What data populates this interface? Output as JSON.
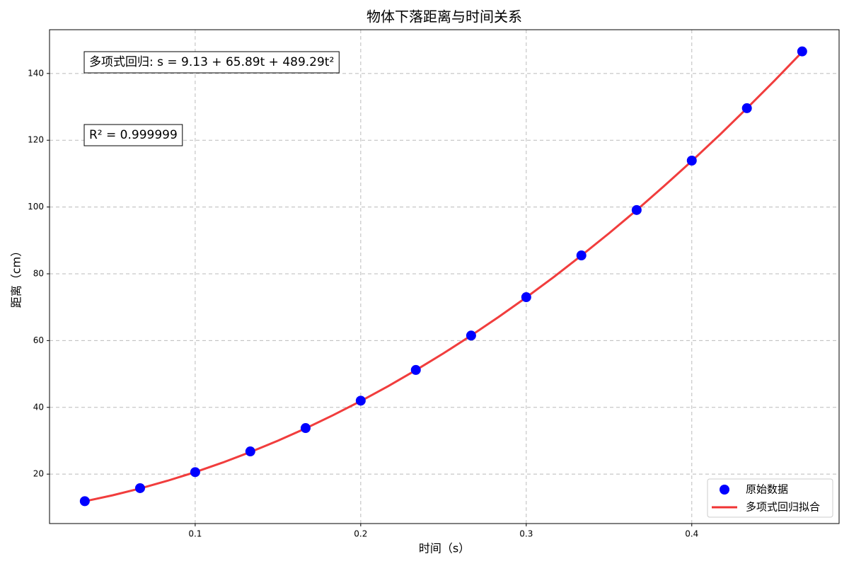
{
  "chart_data": {
    "type": "line",
    "title": "物体下落距离与时间关系",
    "x_label": "时间（s）",
    "y_label": "距离（cm）",
    "annotations": [
      "多项式回归: s = 9.13 + 65.89t + 489.29t²",
      "R² = 0.999999"
    ],
    "series": [
      {
        "name": "原始数据",
        "type": "scatter",
        "color": "#0000ff",
        "x": [
          0.0333,
          0.0667,
          0.1,
          0.1333,
          0.1667,
          0.2,
          0.2333,
          0.2667,
          0.3,
          0.3333,
          0.3667,
          0.4,
          0.4333,
          0.4667
        ],
        "values": [
          11.9,
          15.8,
          20.6,
          26.8,
          33.8,
          42.0,
          51.2,
          61.5,
          73.0,
          85.5,
          99.1,
          113.9,
          129.6,
          146.6
        ]
      },
      {
        "name": "多项式回归拟合",
        "type": "line",
        "color": "#f03333",
        "x": [
          0.0333,
          0.05,
          0.0667,
          0.0833,
          0.1,
          0.1167,
          0.1333,
          0.15,
          0.1667,
          0.1833,
          0.2,
          0.2167,
          0.2333,
          0.25,
          0.2667,
          0.2833,
          0.3,
          0.3167,
          0.3333,
          0.35,
          0.3667,
          0.3833,
          0.4,
          0.4167,
          0.4333,
          0.45,
          0.4667
        ],
        "values": [
          11.87,
          13.65,
          15.7,
          18.02,
          20.61,
          23.48,
          26.61,
          30.02,
          33.7,
          37.66,
          41.88,
          46.38,
          51.14,
          56.18,
          61.5,
          67.08,
          72.93,
          79.06,
          85.46,
          92.13,
          99.07,
          106.29,
          113.77,
          121.53,
          129.56,
          137.86,
          146.44
        ]
      }
    ],
    "xlim": [
      0.012,
      0.489
    ],
    "ylim": [
      5.2,
      153.1
    ],
    "xticks": [
      0.1,
      0.2,
      0.3,
      0.4
    ],
    "yticks": [
      20,
      40,
      60,
      80,
      100,
      120,
      140
    ],
    "grid": true,
    "legend": "lower right"
  }
}
